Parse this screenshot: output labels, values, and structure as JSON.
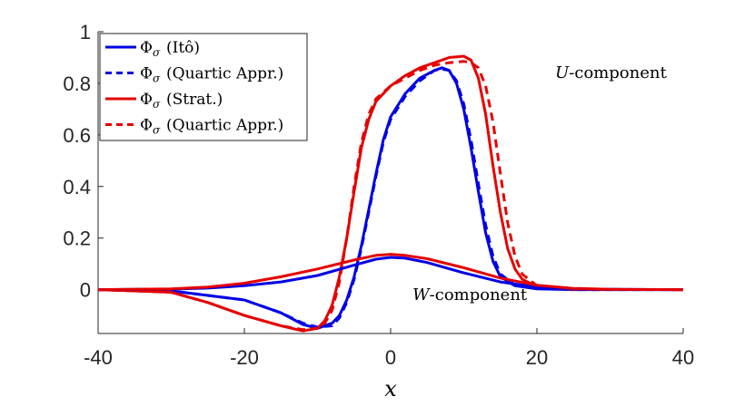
{
  "chart_data": {
    "type": "line",
    "xlabel": "x",
    "ylabel": "",
    "xlim": [
      -40,
      40
    ],
    "ylim": [
      -0.17,
      1
    ],
    "xticks": [
      -40,
      -20,
      0,
      20,
      40
    ],
    "yticks": [
      0,
      0.2,
      0.4,
      0.6,
      0.8,
      1
    ],
    "grid": false,
    "legend_position": "top-left",
    "annotations": [
      {
        "text": "U-component",
        "x": 22.5,
        "y": 0.82
      },
      {
        "text": "W-component",
        "x": 3,
        "y": -0.04
      }
    ],
    "series": [
      {
        "name": "Φσ (Itô)",
        "color": "#0000e6",
        "dash": "solid",
        "component": "U",
        "points": [
          [
            -40,
            0
          ],
          [
            -30,
            -0.005
          ],
          [
            -20,
            -0.04
          ],
          [
            -15,
            -0.09
          ],
          [
            -12,
            -0.135
          ],
          [
            -10,
            -0.15
          ],
          [
            -8,
            -0.13
          ],
          [
            -7,
            -0.1
          ],
          [
            -6,
            -0.04
          ],
          [
            -5,
            0.05
          ],
          [
            -4,
            0.17
          ],
          [
            -3,
            0.31
          ],
          [
            -2,
            0.45
          ],
          [
            -1,
            0.58
          ],
          [
            0,
            0.67
          ],
          [
            2,
            0.76
          ],
          [
            4,
            0.82
          ],
          [
            6,
            0.85
          ],
          [
            7,
            0.86
          ],
          [
            8,
            0.85
          ],
          [
            9,
            0.8
          ],
          [
            10,
            0.7
          ],
          [
            11,
            0.55
          ],
          [
            12,
            0.38
          ],
          [
            13,
            0.22
          ],
          [
            14,
            0.11
          ],
          [
            15,
            0.05
          ],
          [
            17,
            0.015
          ],
          [
            20,
            0.003
          ],
          [
            25,
            0
          ],
          [
            40,
            0
          ]
        ]
      },
      {
        "name": "Φσ (Quartic Appr.)",
        "color": "#0000e6",
        "dash": "dashed",
        "component": "U",
        "points": [
          [
            -40,
            0
          ],
          [
            -30,
            -0.005
          ],
          [
            -20,
            -0.04
          ],
          [
            -15,
            -0.09
          ],
          [
            -12,
            -0.13
          ],
          [
            -10,
            -0.145
          ],
          [
            -8,
            -0.14
          ],
          [
            -7,
            -0.11
          ],
          [
            -6,
            -0.05
          ],
          [
            -5,
            0.04
          ],
          [
            -4,
            0.16
          ],
          [
            -3,
            0.3
          ],
          [
            -2,
            0.44
          ],
          [
            -1,
            0.57
          ],
          [
            0,
            0.66
          ],
          [
            2,
            0.75
          ],
          [
            4,
            0.81
          ],
          [
            6,
            0.85
          ],
          [
            7,
            0.855
          ],
          [
            8,
            0.85
          ],
          [
            9,
            0.81
          ],
          [
            10,
            0.72
          ],
          [
            11,
            0.58
          ],
          [
            12,
            0.41
          ],
          [
            13,
            0.25
          ],
          [
            14,
            0.13
          ],
          [
            15,
            0.06
          ],
          [
            17,
            0.018
          ],
          [
            20,
            0.004
          ],
          [
            25,
            0
          ],
          [
            40,
            0
          ]
        ]
      },
      {
        "name": "Φσ (Strat.)",
        "color": "#e60000",
        "dash": "solid",
        "component": "U",
        "points": [
          [
            -40,
            0
          ],
          [
            -30,
            -0.01
          ],
          [
            -25,
            -0.05
          ],
          [
            -20,
            -0.1
          ],
          [
            -15,
            -0.14
          ],
          [
            -12,
            -0.16
          ],
          [
            -10,
            -0.15
          ],
          [
            -9,
            -0.12
          ],
          [
            -8,
            -0.06
          ],
          [
            -7,
            0.05
          ],
          [
            -6,
            0.2
          ],
          [
            -5,
            0.38
          ],
          [
            -4,
            0.55
          ],
          [
            -3,
            0.66
          ],
          [
            -2,
            0.73
          ],
          [
            0,
            0.79
          ],
          [
            2,
            0.83
          ],
          [
            4,
            0.86
          ],
          [
            6,
            0.88
          ],
          [
            8,
            0.9
          ],
          [
            10,
            0.905
          ],
          [
            11,
            0.89
          ],
          [
            12,
            0.82
          ],
          [
            13,
            0.68
          ],
          [
            14,
            0.48
          ],
          [
            15,
            0.3
          ],
          [
            16,
            0.16
          ],
          [
            17,
            0.08
          ],
          [
            18,
            0.04
          ],
          [
            20,
            0.012
          ],
          [
            25,
            0.001
          ],
          [
            40,
            0
          ]
        ]
      },
      {
        "name": "Φσ (Quartic Appr.)",
        "color": "#e60000",
        "dash": "dashed",
        "component": "U",
        "points": [
          [
            -40,
            0
          ],
          [
            -30,
            -0.01
          ],
          [
            -25,
            -0.05
          ],
          [
            -20,
            -0.1
          ],
          [
            -15,
            -0.14
          ],
          [
            -12,
            -0.155
          ],
          [
            -10,
            -0.15
          ],
          [
            -9,
            -0.13
          ],
          [
            -8,
            -0.08
          ],
          [
            -7,
            0.03
          ],
          [
            -6,
            0.2
          ],
          [
            -5,
            0.4
          ],
          [
            -4,
            0.57
          ],
          [
            -3,
            0.68
          ],
          [
            -2,
            0.74
          ],
          [
            0,
            0.79
          ],
          [
            2,
            0.82
          ],
          [
            4,
            0.85
          ],
          [
            6,
            0.87
          ],
          [
            8,
            0.88
          ],
          [
            10,
            0.885
          ],
          [
            11,
            0.88
          ],
          [
            12,
            0.86
          ],
          [
            13,
            0.79
          ],
          [
            14,
            0.65
          ],
          [
            15,
            0.45
          ],
          [
            16,
            0.26
          ],
          [
            17,
            0.13
          ],
          [
            18,
            0.06
          ],
          [
            20,
            0.015
          ],
          [
            25,
            0.001
          ],
          [
            40,
            0
          ]
        ]
      },
      {
        "name": "",
        "color": "#0000e6",
        "dash": "solid",
        "component": "W",
        "points": [
          [
            -40,
            0
          ],
          [
            -30,
            0.002
          ],
          [
            -25,
            0.006
          ],
          [
            -20,
            0.015
          ],
          [
            -15,
            0.03
          ],
          [
            -10,
            0.055
          ],
          [
            -5,
            0.095
          ],
          [
            -2,
            0.118
          ],
          [
            0,
            0.125
          ],
          [
            2,
            0.122
          ],
          [
            5,
            0.105
          ],
          [
            10,
            0.065
          ],
          [
            15,
            0.03
          ],
          [
            20,
            0.01
          ],
          [
            25,
            0.003
          ],
          [
            30,
            0.001
          ],
          [
            40,
            0
          ]
        ]
      },
      {
        "name": "",
        "color": "#e60000",
        "dash": "solid",
        "component": "W",
        "points": [
          [
            -40,
            0
          ],
          [
            -30,
            0.003
          ],
          [
            -25,
            0.01
          ],
          [
            -20,
            0.025
          ],
          [
            -15,
            0.05
          ],
          [
            -10,
            0.08
          ],
          [
            -5,
            0.115
          ],
          [
            -2,
            0.133
          ],
          [
            0,
            0.137
          ],
          [
            2,
            0.133
          ],
          [
            5,
            0.12
          ],
          [
            10,
            0.085
          ],
          [
            15,
            0.045
          ],
          [
            20,
            0.017
          ],
          [
            25,
            0.005
          ],
          [
            30,
            0.001
          ],
          [
            40,
            0
          ]
        ]
      }
    ],
    "legend": [
      {
        "label": "(Itô)",
        "color": "#0000e6",
        "dash": "solid"
      },
      {
        "label": "(Quartic Appr.)",
        "color": "#0000e6",
        "dash": "dashed"
      },
      {
        "label": "(Strat.)",
        "color": "#e60000",
        "dash": "solid"
      },
      {
        "label": "(Quartic Appr.)",
        "color": "#e60000",
        "dash": "dashed"
      }
    ]
  }
}
